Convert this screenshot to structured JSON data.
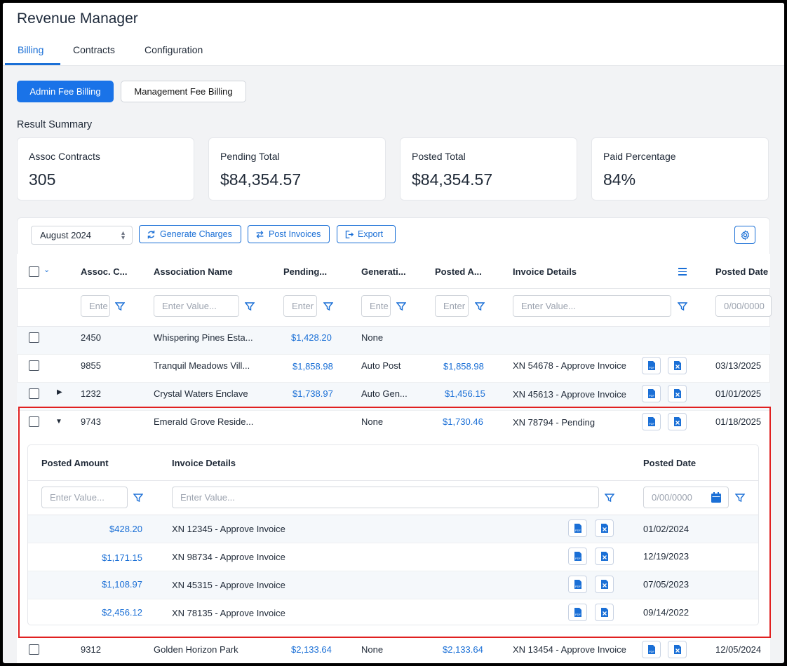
{
  "app": {
    "title": "Revenue Manager"
  },
  "tabs": [
    {
      "label": "Billing",
      "active": true
    },
    {
      "label": "Contracts"
    },
    {
      "label": "Configuration"
    }
  ],
  "billing_types": {
    "admin": "Admin Fee Billing",
    "management": "Management Fee Billing"
  },
  "summary": {
    "title": "Result Summary",
    "cards": [
      {
        "label": "Assoc Contracts",
        "value": "305"
      },
      {
        "label": "Pending Total",
        "value": "$84,354.57"
      },
      {
        "label": "Posted Total",
        "value": "$84,354.57"
      },
      {
        "label": "Paid Percentage",
        "value": "84%"
      }
    ]
  },
  "toolbar": {
    "month": "August 2024",
    "generate": "Generate Charges",
    "post": "Post Invoices",
    "export": "Export"
  },
  "table": {
    "columns": [
      "Assoc. C...",
      "Association Name",
      "Pending...",
      "Generati...",
      "Posted A...",
      "Invoice Details",
      "Posted Date"
    ],
    "filters": {
      "assoc": "Ente",
      "name": "Enter Value...",
      "pending": "Enter",
      "gen": "Ente",
      "posted": "Enter",
      "invoice": "Enter Value...",
      "date": "0/00/0000"
    },
    "rows": [
      {
        "id": "2450",
        "name": "Whispering Pines Esta...",
        "pending": "$1,428.20",
        "gen": "None",
        "posted": "",
        "invoice": "",
        "date": ""
      },
      {
        "id": "9855",
        "name": "Tranquil Meadows Vill...",
        "pending": "$1,858.98",
        "gen": "Auto Post",
        "posted": "$1,858.98",
        "invoice": "XN 54678 - Approve Invoice",
        "date": "03/13/2025"
      },
      {
        "id": "1232",
        "name": "Crystal Waters Enclave",
        "pending": "$1,738.97",
        "gen": "Auto Gen...",
        "posted": "$1,456.15",
        "invoice": "XN 45613 - Approve Invoice",
        "date": "01/01/2025"
      },
      {
        "id": "9743",
        "name": "Emerald Grove Reside...",
        "pending": "",
        "gen": "None",
        "posted": "$1,730.46",
        "invoice": "XN 78794 - Pending",
        "date": "01/18/2025"
      },
      {
        "id": "9312",
        "name": "Golden Horizon Park",
        "pending": "$2,133.64",
        "gen": "None",
        "posted": "$2,133.64",
        "invoice": "XN 13454 - Approve Invoice",
        "date": "12/05/2024"
      }
    ]
  },
  "subtable": {
    "columns": [
      "Posted Amount",
      "Invoice Details",
      "Posted Date"
    ],
    "filters": {
      "amount": "Enter Value...",
      "invoice": "Enter Value...",
      "date": "0/00/0000"
    },
    "rows": [
      {
        "amount": "$428.20",
        "invoice": "XN 12345 - Approve Invoice",
        "date": "01/02/2024"
      },
      {
        "amount": "$1,171.15",
        "invoice": "XN 98734 - Approve Invoice",
        "date": "12/19/2023"
      },
      {
        "amount": "$1,108.97",
        "invoice": "XN 45315 - Approve Invoice",
        "date": "07/05/2023"
      },
      {
        "amount": "$2,456.12",
        "invoice": "XN 78135 - Approve Invoice",
        "date": "09/14/2022"
      }
    ]
  },
  "colors": {
    "accent": "#1a6fd6",
    "highlight": "#e02020"
  }
}
